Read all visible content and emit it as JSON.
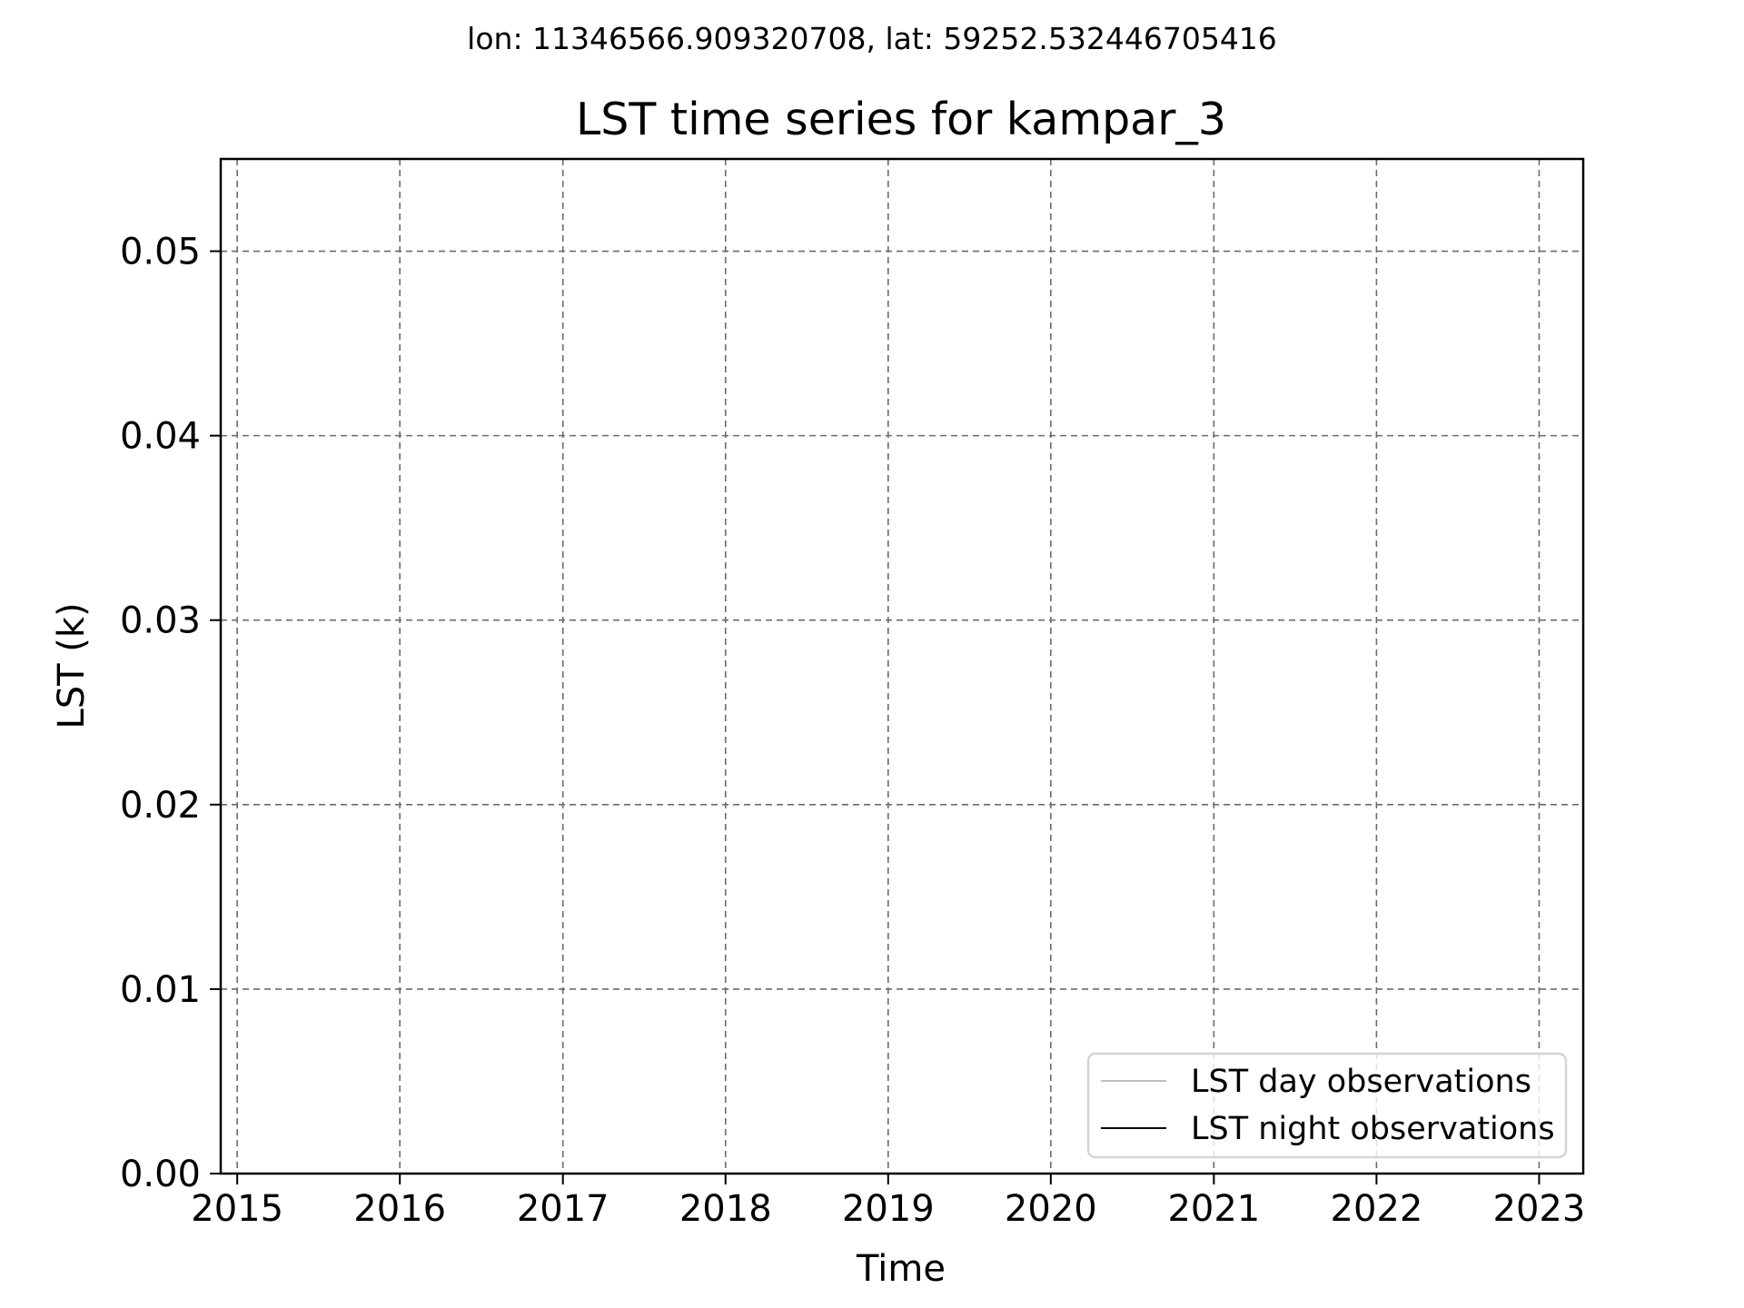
{
  "chart_data": {
    "type": "line",
    "suptitle": "lon: 11346566.909320708, lat: 59252.532446705416",
    "title": "LST time series for kampar_3",
    "xlabel": "Time",
    "ylabel": "LST (k)",
    "x_ticks": [
      "2015",
      "2016",
      "2017",
      "2018",
      "2019",
      "2020",
      "2021",
      "2022",
      "2023"
    ],
    "x_range": [
      "2014-11-25",
      "2023-04-10"
    ],
    "y_ticks": [
      "0.00",
      "0.01",
      "0.02",
      "0.03",
      "0.04",
      "0.05"
    ],
    "ylim": [
      0,
      0.055
    ],
    "grid": true,
    "legend_position": "lower-right",
    "series": [
      {
        "name": "LST day observations",
        "color": "#c0c0c0",
        "x": [],
        "values": []
      },
      {
        "name": "LST night observations",
        "color": "#000000",
        "x": [],
        "values": []
      }
    ]
  }
}
